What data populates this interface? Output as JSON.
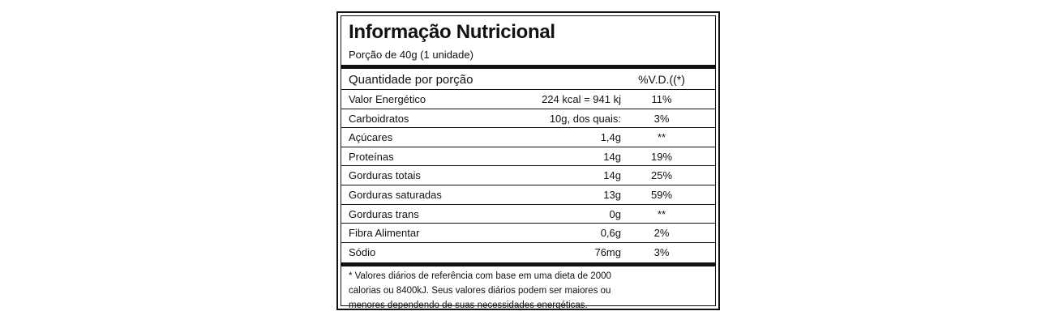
{
  "label": {
    "title": "Informação Nutricional",
    "portion": "Porção de 40g (1 unidade)",
    "header": {
      "quantity_label": "Quantidade por porção",
      "dv_label": "%V.D.((*)"
    },
    "rows": [
      {
        "name": "Valor Energético",
        "qty": "224 kcal = 941 kj",
        "dv": "11%"
      },
      {
        "name": "Carboidratos",
        "qty": "10g, dos quais:",
        "dv": "3%"
      },
      {
        "name": "Açúcares",
        "qty": "1,4g",
        "dv": "**"
      },
      {
        "name": "Proteínas",
        "qty": "14g",
        "dv": "19%"
      },
      {
        "name": "Gorduras totais",
        "qty": "14g",
        "dv": "25%"
      },
      {
        "name": "Gorduras saturadas",
        "qty": "13g",
        "dv": "59%"
      },
      {
        "name": "Gorduras trans",
        "qty": "0g",
        "dv": "**"
      },
      {
        "name": "Fibra Alimentar",
        "qty": "0,6g",
        "dv": "2%"
      },
      {
        "name": "Sódio",
        "qty": "76mg",
        "dv": "3%"
      }
    ],
    "footnote": [
      "* Valores diários de referência com base em uma dieta de 2000",
      "calorias ou 8400kJ. Seus valores diários podem ser maiores ou",
      "menores dependendo de suas necessidades energéticas."
    ]
  }
}
